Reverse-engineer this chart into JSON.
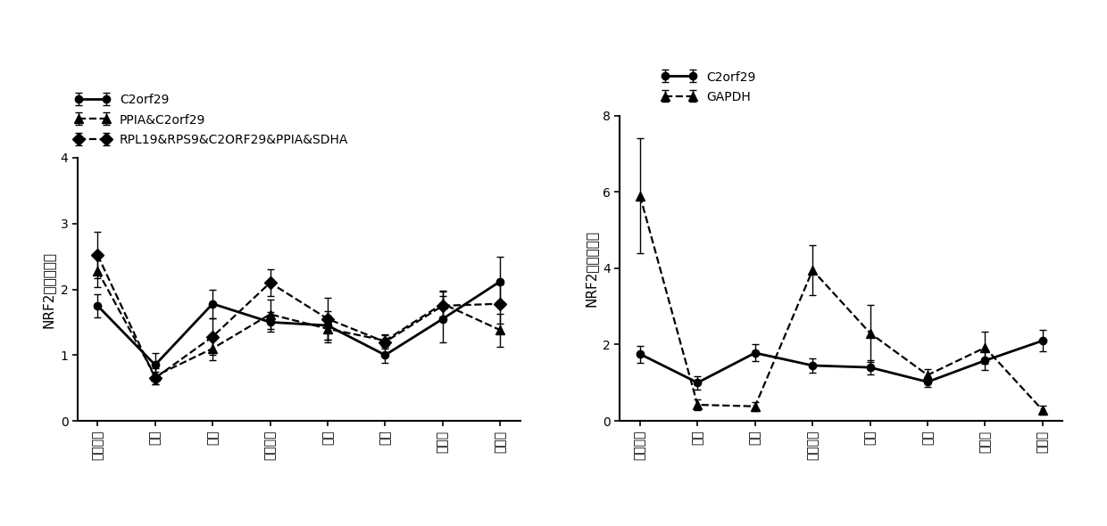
{
  "left_chart": {
    "xlabel_categories": [
      "肌层粘膜",
      "黄体",
      "胚盘",
      "子宫内膜",
      "乳腺",
      "卵巢",
      "输卵管",
      "滞养层"
    ],
    "series": [
      {
        "label": "C2orf29",
        "linestyle": "solid",
        "marker": "o",
        "markersize": 6,
        "linewidth": 2.0,
        "y": [
          1.75,
          0.85,
          1.78,
          1.5,
          1.45,
          1.0,
          1.55,
          2.12
        ],
        "yerr": [
          0.18,
          0.18,
          0.22,
          0.15,
          0.22,
          0.12,
          0.35,
          0.38
        ]
      },
      {
        "label": "PPIA&C2orf29",
        "linestyle": "dashed",
        "marker": "^",
        "markersize": 7,
        "linewidth": 1.6,
        "y": [
          2.28,
          0.68,
          1.1,
          1.62,
          1.4,
          1.22,
          1.78,
          1.38
        ],
        "yerr": [
          0.25,
          0.12,
          0.18,
          0.22,
          0.2,
          0.1,
          0.2,
          0.25
        ]
      },
      {
        "label": "RPL19&RPS9&C2ORF29&PPIA&SDHA",
        "linestyle": "dashed",
        "marker": "D",
        "markersize": 7,
        "linewidth": 1.6,
        "y": [
          2.52,
          0.65,
          1.28,
          2.1,
          1.55,
          1.2,
          1.75,
          1.78
        ],
        "yerr": [
          0.35,
          0.1,
          0.28,
          0.2,
          0.32,
          0.1,
          0.22,
          0.3
        ]
      }
    ],
    "ylabel": "NRF2相对表达量",
    "ylim": [
      0,
      4
    ],
    "yticks": [
      0,
      1,
      2,
      3,
      4
    ]
  },
  "right_chart": {
    "xlabel_categories": [
      "肌层粘膜",
      "黄体",
      "胚盘",
      "子宫内膜",
      "乳腺",
      "卵巢",
      "输卵管",
      "滞养层"
    ],
    "series": [
      {
        "label": "C2orf29",
        "linestyle": "solid",
        "marker": "o",
        "markersize": 6,
        "linewidth": 2.0,
        "y": [
          1.75,
          1.0,
          1.78,
          1.45,
          1.4,
          1.02,
          1.58,
          2.1
        ],
        "yerr": [
          0.22,
          0.18,
          0.22,
          0.18,
          0.18,
          0.12,
          0.25,
          0.28
        ]
      },
      {
        "label": "GAPDH",
        "linestyle": "dashed",
        "marker": "^",
        "markersize": 7,
        "linewidth": 1.6,
        "y": [
          5.9,
          0.42,
          0.38,
          3.95,
          2.3,
          1.2,
          1.92,
          0.28
        ],
        "yerr": [
          1.5,
          0.15,
          0.12,
          0.65,
          0.75,
          0.15,
          0.42,
          0.12
        ]
      }
    ],
    "ylabel": "NRF2相对表达量",
    "ylim": [
      0,
      8
    ],
    "yticks": [
      0,
      2,
      4,
      6,
      8
    ]
  },
  "color": "#000000",
  "background_color": "#ffffff",
  "capsize": 3,
  "elinewidth": 1.0
}
